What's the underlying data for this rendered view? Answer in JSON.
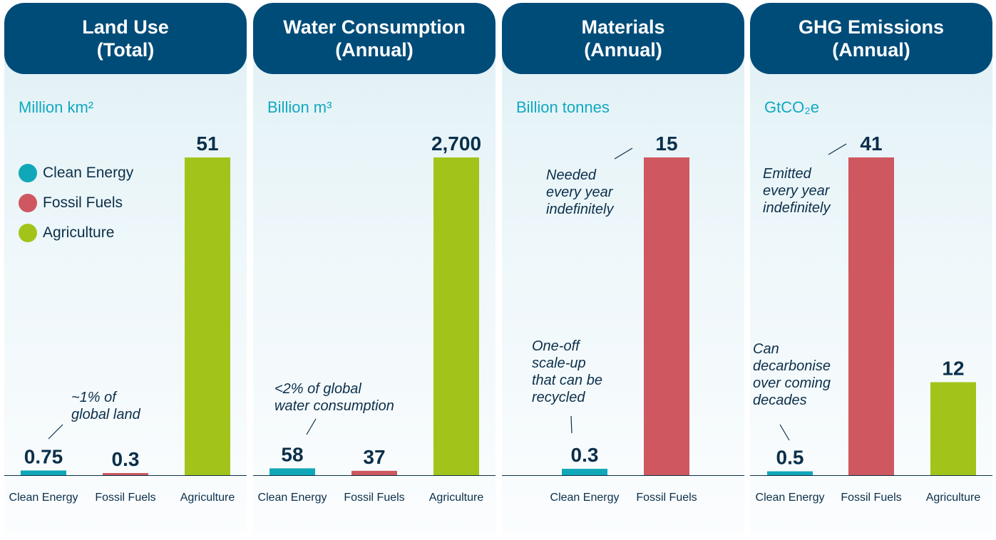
{
  "legend": [
    {
      "label": "Clean Energy",
      "color": "#10a7b9"
    },
    {
      "label": "Fossil Fuels",
      "color": "#cf5760"
    },
    {
      "label": "Agriculture",
      "color": "#a2c41a"
    }
  ],
  "chart_data": [
    {
      "type": "bar",
      "title": "Land Use\n(Total)",
      "unit": "Million km²",
      "categories": [
        "Clean Energy",
        "Fossil Fuels",
        "Agriculture"
      ],
      "values": [
        0.75,
        0.3,
        51
      ],
      "value_labels": [
        "0.75",
        "0.3",
        "51"
      ],
      "colors": [
        "#10a7b9",
        "#cf5760",
        "#a2c41a"
      ],
      "ylim": [
        0,
        51
      ],
      "annotations": [
        "~1% of\nglobal land"
      ]
    },
    {
      "type": "bar",
      "title": "Water Consumption\n(Annual)",
      "unit": "Billion m³",
      "categories": [
        "Clean Energy",
        "Fossil Fuels",
        "Agriculture"
      ],
      "values": [
        58,
        37,
        2700
      ],
      "value_labels": [
        "58",
        "37",
        "2,700"
      ],
      "colors": [
        "#10a7b9",
        "#cf5760",
        "#a2c41a"
      ],
      "ylim": [
        0,
        2700
      ],
      "annotations": [
        "<2% of global\nwater consumption"
      ]
    },
    {
      "type": "bar",
      "title": "Materials\n(Annual)",
      "unit": "Billion tonnes",
      "categories": [
        "Clean Energy",
        "Fossil Fuels"
      ],
      "values": [
        0.3,
        15
      ],
      "value_labels": [
        "0.3",
        "15"
      ],
      "colors": [
        "#10a7b9",
        "#cf5760"
      ],
      "ylim": [
        0,
        15
      ],
      "annotations": [
        "Needed\nevery year\nindefinitely",
        "One-off\nscale-up\nthat can be\nrecycled"
      ]
    },
    {
      "type": "bar",
      "title": "GHG Emissions\n(Annual)",
      "unit": "GtCO₂e",
      "categories": [
        "Clean Energy",
        "Fossil Fuels",
        "Agriculture"
      ],
      "values": [
        0.5,
        41,
        12
      ],
      "value_labels": [
        "0.5",
        "41",
        "12"
      ],
      "colors": [
        "#10a7b9",
        "#cf5760",
        "#a2c41a"
      ],
      "ylim": [
        0,
        41
      ],
      "annotations": [
        "Emitted\nevery year\nindefinitely",
        "Can\ndecarbonise\nover coming\ndecades"
      ]
    }
  ]
}
